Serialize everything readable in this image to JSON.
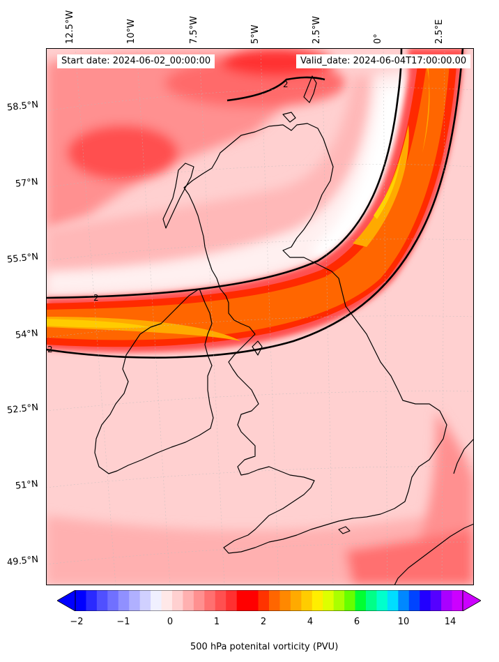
{
  "map": {
    "start_label": "Start date: 2024-06-02_00:00:00",
    "valid_label": "Valid_date: 2024-06-04T17:00:00.00",
    "lon_labels": [
      "12.5°W",
      "10°W",
      "7.5°W",
      "5°W",
      "2.5°W",
      "0°",
      "2.5°E"
    ],
    "lat_labels": [
      "58.5°N",
      "57°N",
      "55.5°N",
      "54°N",
      "52.5°N",
      "51°N",
      "49.5°N"
    ],
    "contour_labels": [
      "2",
      "2",
      "2"
    ],
    "colors": {
      "background": "#ffd0d0",
      "jet_core": "#ff6600",
      "jet_inner": "#ffaa00",
      "jet_peak": "#ffd400",
      "low_pv": "#fff0f0",
      "coast": "#000000"
    }
  },
  "colorbar": {
    "title": "500 hPa potenital vorticity (PVU)",
    "ticks": [
      "−2",
      "−1",
      "0",
      "1",
      "2",
      "4",
      "6",
      "10",
      "14"
    ],
    "colors": [
      "#0000ff",
      "#2a2aff",
      "#5050ff",
      "#7070ff",
      "#9090ff",
      "#b0b0ff",
      "#d0d0ff",
      "#f0f0ff",
      "#ffe8e8",
      "#ffd0d0",
      "#ffb0b0",
      "#ff9090",
      "#ff7070",
      "#ff5050",
      "#ff3030",
      "#ff0000",
      "#ff0000",
      "#ff3300",
      "#ff6600",
      "#ff8800",
      "#ffaa00",
      "#ffcc00",
      "#ffee00",
      "#ddff00",
      "#aaff00",
      "#66ff00",
      "#00ff33",
      "#00ff88",
      "#00ffcc",
      "#00ddff",
      "#0088ff",
      "#0044ff",
      "#2200ff",
      "#5500ff",
      "#aa00ff",
      "#cc00ff"
    ]
  }
}
